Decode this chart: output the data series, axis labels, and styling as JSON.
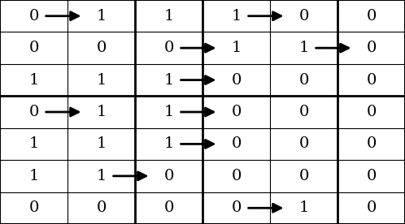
{
  "nrows": 7,
  "ncols": 6,
  "figsize": [
    4.98,
    2.76
  ],
  "dpi": 100,
  "cell_values": [
    [
      "0",
      "1",
      "1",
      "1",
      "0",
      "0"
    ],
    [
      "0",
      "0",
      "0",
      "1",
      "1",
      "0"
    ],
    [
      "1",
      "1",
      "1",
      "0",
      "0",
      "0"
    ],
    [
      "0",
      "1",
      "1",
      "0",
      "0",
      "0"
    ],
    [
      "1",
      "1",
      "1",
      "0",
      "0",
      "0"
    ],
    [
      "1",
      "1",
      "0",
      "0",
      "0",
      "0"
    ],
    [
      "0",
      "0",
      "0",
      "0",
      "1",
      "0"
    ]
  ],
  "arrows": [
    [
      0,
      0,
      1
    ],
    [
      0,
      3,
      4
    ],
    [
      1,
      2,
      3
    ],
    [
      1,
      4,
      5
    ],
    [
      2,
      2,
      3
    ],
    [
      3,
      0,
      1
    ],
    [
      3,
      2,
      3
    ],
    [
      4,
      2,
      3
    ],
    [
      5,
      1,
      2
    ],
    [
      6,
      3,
      4
    ]
  ],
  "thick_col_lines": [
    2,
    3,
    5
  ],
  "thick_row_lines": [
    3
  ],
  "border_lw": 1.5,
  "thin_lw": 0.8,
  "thick_lw": 2.0,
  "background": "#ffffff",
  "line_color": "#000000",
  "text_color": "#000000",
  "font_size": 14,
  "arrow_lw": 2.0,
  "arrow_mutation_scale": 18
}
